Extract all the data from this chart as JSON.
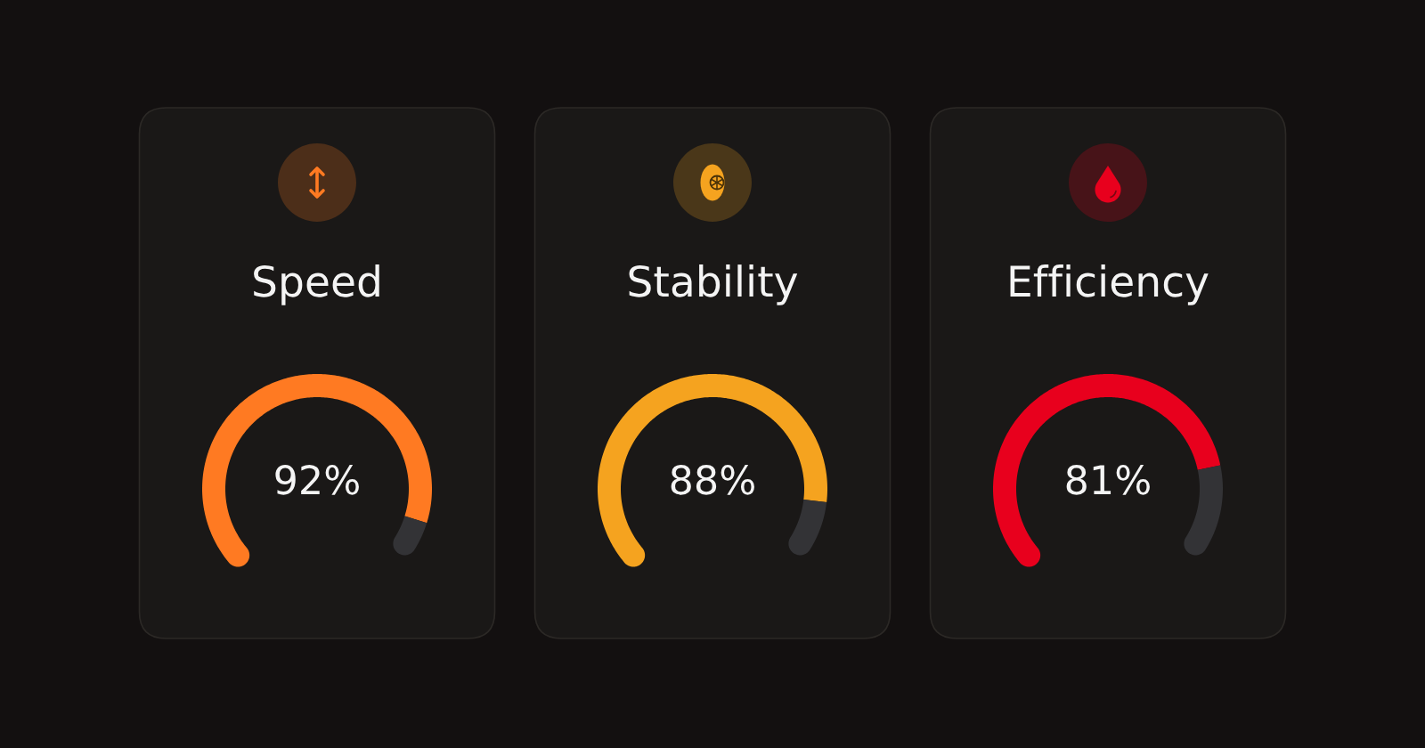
{
  "chart_data": [
    {
      "type": "donut",
      "title": "Speed",
      "categories": [
        null,
        null
      ],
      "values": [
        92,
        8
      ],
      "colors": [
        "#ff7a22",
        "#333336"
      ],
      "value_labels": [
        "92%",
        null
      ]
    },
    {
      "type": "donut",
      "title": "Stability",
      "categories": [
        null,
        null
      ],
      "values": [
        88,
        12
      ],
      "colors": [
        "#f5a31f",
        "#333336"
      ],
      "value_labels": [
        "88%",
        null
      ]
    },
    {
      "type": "donut",
      "title": "Efficiency",
      "categories": [
        null,
        null
      ],
      "values": [
        81,
        19
      ],
      "colors": [
        "#e8001d",
        "#333336"
      ],
      "value_labels": [
        "81%",
        null
      ]
    }
  ]
}
